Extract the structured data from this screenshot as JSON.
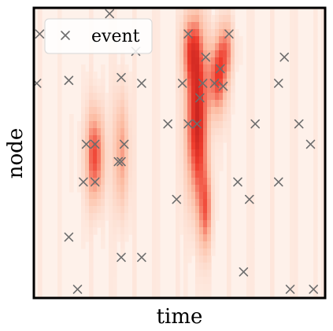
{
  "chart_data": {
    "type": "heatmap",
    "xlabel": "time",
    "ylabel": "node",
    "xlim": [
      0,
      1
    ],
    "ylim": [
      0,
      1
    ],
    "colormap": "Reds",
    "legend": {
      "position": "top-left",
      "entries": [
        "event"
      ]
    },
    "series": [
      {
        "name": "event",
        "marker": "x",
        "color": "#6e6e6e",
        "points": [
          [
            0.02,
            0.91
          ],
          [
            0.26,
            0.98
          ],
          [
            0.35,
            0.85
          ],
          [
            0.12,
            0.75
          ],
          [
            0.3,
            0.76
          ],
          [
            0.37,
            0.74
          ],
          [
            0.53,
            0.91
          ],
          [
            0.59,
            0.83
          ],
          [
            0.67,
            0.91
          ],
          [
            0.64,
            0.79
          ],
          [
            0.86,
            0.83
          ],
          [
            0.01,
            0.74
          ],
          [
            0.51,
            0.74
          ],
          [
            0.58,
            0.74
          ],
          [
            0.62,
            0.74
          ],
          [
            0.57,
            0.69
          ],
          [
            0.65,
            0.73
          ],
          [
            0.84,
            0.74
          ],
          [
            0.46,
            0.6
          ],
          [
            0.53,
            0.6
          ],
          [
            0.56,
            0.6
          ],
          [
            0.76,
            0.6
          ],
          [
            0.91,
            0.6
          ],
          [
            0.18,
            0.53
          ],
          [
            0.21,
            0.53
          ],
          [
            0.31,
            0.53
          ],
          [
            0.29,
            0.47
          ],
          [
            0.3,
            0.47
          ],
          [
            0.17,
            0.4
          ],
          [
            0.21,
            0.4
          ],
          [
            0.49,
            0.34
          ],
          [
            0.7,
            0.4
          ],
          [
            0.74,
            0.34
          ],
          [
            0.84,
            0.4
          ],
          [
            0.95,
            0.53
          ],
          [
            0.12,
            0.21
          ],
          [
            0.3,
            0.14
          ],
          [
            0.37,
            0.14
          ],
          [
            0.72,
            0.09
          ],
          [
            0.15,
            0.03
          ],
          [
            0.88,
            0.03
          ],
          [
            0.96,
            0.03
          ]
        ]
      }
    ],
    "heat_sources": [
      {
        "x": 0.21,
        "y": 0.49,
        "sx": 0.022,
        "sy": 0.11,
        "v": 0.55
      },
      {
        "x": 0.3,
        "y": 0.5,
        "sx": 0.018,
        "sy": 0.14,
        "v": 0.35
      },
      {
        "x": 0.56,
        "y": 0.62,
        "sx": 0.025,
        "sy": 0.2,
        "v": 0.75
      },
      {
        "x": 0.59,
        "y": 0.3,
        "sx": 0.015,
        "sy": 0.1,
        "v": 0.4
      },
      {
        "x": 0.63,
        "y": 0.76,
        "sx": 0.022,
        "sy": 0.09,
        "v": 0.55
      },
      {
        "x": 0.54,
        "y": 0.86,
        "sx": 0.022,
        "sy": 0.08,
        "v": 0.4
      },
      {
        "x": 0.66,
        "y": 0.86,
        "sx": 0.018,
        "sy": 0.07,
        "v": 0.35
      }
    ]
  }
}
